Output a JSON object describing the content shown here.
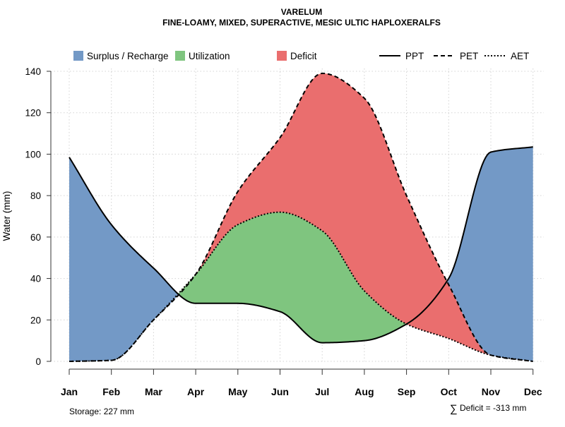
{
  "chart_data": {
    "type": "area",
    "title": "VARELUM",
    "subtitle": "FINE-LOAMY, MIXED, SUPERACTIVE, MESIC ULTIC HAPLOXERALFS",
    "xlabel": "",
    "ylabel": "Water (mm)",
    "ylim": [
      0,
      140
    ],
    "yticks": [
      0,
      20,
      40,
      60,
      80,
      100,
      120,
      140
    ],
    "grid": true,
    "categories": [
      "Jan",
      "Feb",
      "Mar",
      "Apr",
      "May",
      "Jun",
      "Jul",
      "Aug",
      "Sep",
      "Oct",
      "Nov",
      "Dec"
    ],
    "series": [
      {
        "name": "PPT",
        "style": "solid",
        "values": [
          98.5,
          66,
          45,
          28,
          28,
          24,
          9,
          10,
          18,
          40,
          101,
          103.5
        ]
      },
      {
        "name": "PET",
        "style": "dashed",
        "values": [
          0,
          0.5,
          20,
          42,
          82,
          108,
          139,
          127,
          80,
          37,
          3,
          0
        ]
      },
      {
        "name": "AET",
        "style": "dotted",
        "values": [
          0,
          0.5,
          20,
          42,
          66,
          72,
          63,
          34,
          18,
          11,
          3,
          0
        ]
      }
    ],
    "areas": [
      {
        "name": "Surplus / Recharge",
        "color": "#7399c6"
      },
      {
        "name": "Utilization",
        "color": "#7fc57f"
      },
      {
        "name": "Deficit",
        "color": "#ea6e6e"
      }
    ],
    "legend": {
      "position": "top",
      "areas": [
        "Surplus / Recharge",
        "Utilization",
        "Deficit"
      ],
      "lines": [
        "PPT",
        "PET",
        "AET"
      ]
    },
    "annotations": {
      "storage": "Storage: 227 mm",
      "deficit_symbol": "∑",
      "deficit": "Deficit = -313 mm"
    }
  }
}
